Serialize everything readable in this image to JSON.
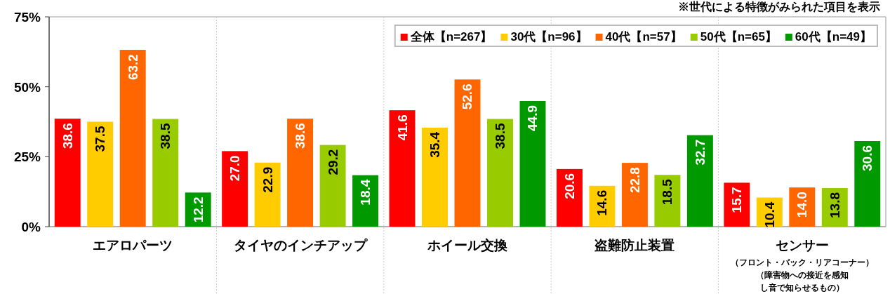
{
  "chart_data": {
    "type": "bar",
    "categories": [
      "エアロパーツ",
      "タイヤのインチアップ",
      "ホイール交換",
      "盗難防止装置",
      "センサー（フロント・バック・リアコーナー）（障害物への接近を感知し音で知らせるもの）"
    ],
    "series": [
      {
        "name": "全体【n=267】",
        "color": "#ff0000",
        "values": [
          38.6,
          27.0,
          41.6,
          20.6,
          15.7
        ],
        "value_labels": [
          "38.6",
          "27.0",
          "41.6",
          "20.6",
          "15.7"
        ]
      },
      {
        "name": "30代【n=96】",
        "color": "#ffcc00",
        "values": [
          37.5,
          22.9,
          35.4,
          14.6,
          10.4
        ],
        "value_labels": [
          "37.5",
          "22.9",
          "35.4",
          "14.6",
          "10.4"
        ]
      },
      {
        "name": "40代【n=57】",
        "color": "#ff6600",
        "values": [
          63.2,
          38.6,
          52.6,
          22.8,
          14.0
        ],
        "value_labels": [
          "63.2",
          "38.6",
          "52.6",
          "22.8",
          "14.0"
        ]
      },
      {
        "name": "50代【n=65】",
        "color": "#99cc00",
        "values": [
          38.5,
          29.2,
          38.5,
          18.5,
          13.8
        ],
        "value_labels": [
          "38.5",
          "29.2",
          "38.5",
          "18.5",
          "13.8"
        ]
      },
      {
        "name": "60代【n=49】",
        "color": "#009900",
        "values": [
          12.2,
          18.4,
          44.9,
          32.7,
          30.6
        ],
        "value_labels": [
          "12.2",
          "18.4",
          "44.9",
          "32.7",
          "30.6"
        ]
      }
    ],
    "ylim": [
      0,
      75
    ],
    "yticks": [
      {
        "value": 0,
        "label": "0%"
      },
      {
        "value": 25,
        "label": "25%"
      },
      {
        "value": 50,
        "label": "50%"
      },
      {
        "value": 75,
        "label": "75%"
      }
    ],
    "legend": "top right",
    "grid": false,
    "annotations": [
      "※世代による特徴がみられた項目を表示"
    ]
  }
}
